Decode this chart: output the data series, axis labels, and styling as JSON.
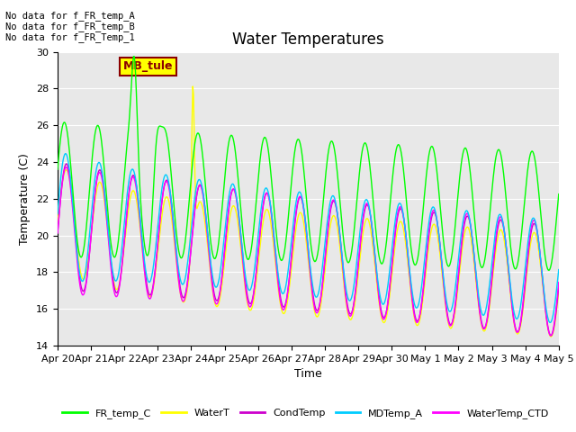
{
  "title": "Water Temperatures",
  "xlabel": "Time",
  "ylabel": "Temperature (C)",
  "ylim": [
    14,
    30
  ],
  "yticks": [
    14,
    16,
    18,
    20,
    22,
    24,
    26,
    28,
    30
  ],
  "date_labels": [
    "Apr 20",
    "Apr 21",
    "Apr 22",
    "Apr 23",
    "Apr 24",
    "Apr 25",
    "Apr 26",
    "Apr 27",
    "Apr 28",
    "Apr 29",
    "Apr 30",
    "May 1",
    "May 2",
    "May 3",
    "May 4",
    "May 5"
  ],
  "legend_entries": [
    "FR_temp_C",
    "WaterT",
    "CondTemp",
    "MDTemp_A",
    "WaterTemp_CTD"
  ],
  "legend_colors": [
    "#00ff00",
    "#ffff00",
    "#cc00cc",
    "#00ccff",
    "#ff00ff"
  ],
  "annotations": [
    "No data for f_FR_temp_A",
    "No data for f_FR_temp_B",
    "No data for f_FR_Temp_1"
  ],
  "annotation_box": "MB_tule",
  "bg_color": "#e8e8e8",
  "title_fontsize": 12,
  "tick_fontsize": 8,
  "label_fontsize": 9
}
